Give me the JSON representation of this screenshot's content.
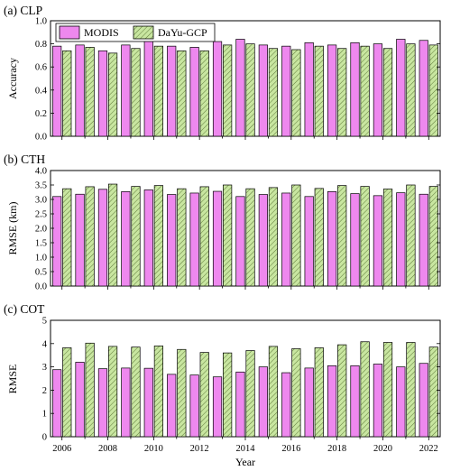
{
  "colors": {
    "modis_fill": "#ee88ee",
    "dayu_fill": "#c8e6a0",
    "dayu_hatch": "#5f7a3a",
    "axis": "#000000"
  },
  "chart_data": [
    {
      "type": "bar",
      "title": "(a) CLP",
      "ylabel": "Accuracy",
      "xlabel": "",
      "ylim": [
        0,
        1.0
      ],
      "yticks": [
        "0.0",
        "0.2",
        "0.4",
        "0.6",
        "0.8",
        "1.0"
      ],
      "ytick_values": [
        0,
        0.2,
        0.4,
        0.6,
        0.8,
        1.0
      ],
      "categories": [
        2006,
        2007,
        2008,
        2009,
        2010,
        2011,
        2012,
        2013,
        2014,
        2015,
        2016,
        2017,
        2018,
        2019,
        2020,
        2021,
        2022
      ],
      "series": [
        {
          "name": "MODIS",
          "values": [
            0.78,
            0.79,
            0.74,
            0.79,
            0.83,
            0.78,
            0.77,
            0.82,
            0.84,
            0.79,
            0.78,
            0.81,
            0.79,
            0.81,
            0.8,
            0.84,
            0.83
          ]
        },
        {
          "name": "DaYu-GCP",
          "values": [
            0.74,
            0.77,
            0.72,
            0.76,
            0.78,
            0.74,
            0.74,
            0.79,
            0.8,
            0.76,
            0.75,
            0.78,
            0.76,
            0.78,
            0.76,
            0.8,
            0.79
          ]
        }
      ],
      "legend_placement": "top-left"
    },
    {
      "type": "bar",
      "title": "(b) CTH",
      "ylabel": "RMSE (km)",
      "xlabel": "",
      "ylim": [
        0,
        4.0
      ],
      "yticks": [
        "0.0",
        "0.5",
        "1.0",
        "1.5",
        "2.0",
        "2.5",
        "3.0",
        "3.5",
        "4.0"
      ],
      "ytick_values": [
        0,
        0.5,
        1.0,
        1.5,
        2.0,
        2.5,
        3.0,
        3.5,
        4.0
      ],
      "categories": [
        2006,
        2007,
        2008,
        2009,
        2010,
        2011,
        2012,
        2013,
        2014,
        2015,
        2016,
        2017,
        2018,
        2019,
        2020,
        2021,
        2022
      ],
      "series": [
        {
          "name": "MODIS",
          "values": [
            3.1,
            3.18,
            3.35,
            3.27,
            3.33,
            3.17,
            3.22,
            3.28,
            3.1,
            3.17,
            3.22,
            3.1,
            3.27,
            3.2,
            3.13,
            3.23,
            3.18
          ]
        },
        {
          "name": "DaYu-GCP",
          "values": [
            3.37,
            3.44,
            3.53,
            3.45,
            3.48,
            3.37,
            3.44,
            3.5,
            3.37,
            3.41,
            3.5,
            3.38,
            3.48,
            3.45,
            3.36,
            3.5,
            3.45
          ]
        }
      ]
    },
    {
      "type": "bar",
      "title": "(c) COT",
      "ylabel": "RMSE",
      "xlabel": "Year",
      "ylim": [
        0,
        5
      ],
      "yticks": [
        "0",
        "1",
        "2",
        "3",
        "4",
        "5"
      ],
      "ytick_values": [
        0,
        1,
        2,
        3,
        4,
        5
      ],
      "categories": [
        2006,
        2007,
        2008,
        2009,
        2010,
        2011,
        2012,
        2013,
        2014,
        2015,
        2016,
        2017,
        2018,
        2019,
        2020,
        2021,
        2022
      ],
      "xtick_labels": [
        "2006",
        "2008",
        "2010",
        "2012",
        "2014",
        "2016",
        "2018",
        "2020",
        "2022"
      ],
      "xtick_values": [
        2006,
        2008,
        2010,
        2012,
        2014,
        2016,
        2018,
        2020,
        2022
      ],
      "series": [
        {
          "name": "MODIS",
          "values": [
            2.88,
            3.2,
            2.92,
            2.95,
            2.94,
            2.68,
            2.65,
            2.57,
            2.78,
            3.0,
            2.75,
            2.95,
            3.05,
            3.05,
            3.12,
            3.0,
            3.15
          ]
        },
        {
          "name": "DaYu-GCP",
          "values": [
            3.82,
            4.02,
            3.88,
            3.85,
            3.9,
            3.75,
            3.62,
            3.6,
            3.7,
            3.88,
            3.78,
            3.82,
            3.95,
            4.08,
            4.05,
            4.05,
            3.85
          ]
        }
      ]
    }
  ]
}
